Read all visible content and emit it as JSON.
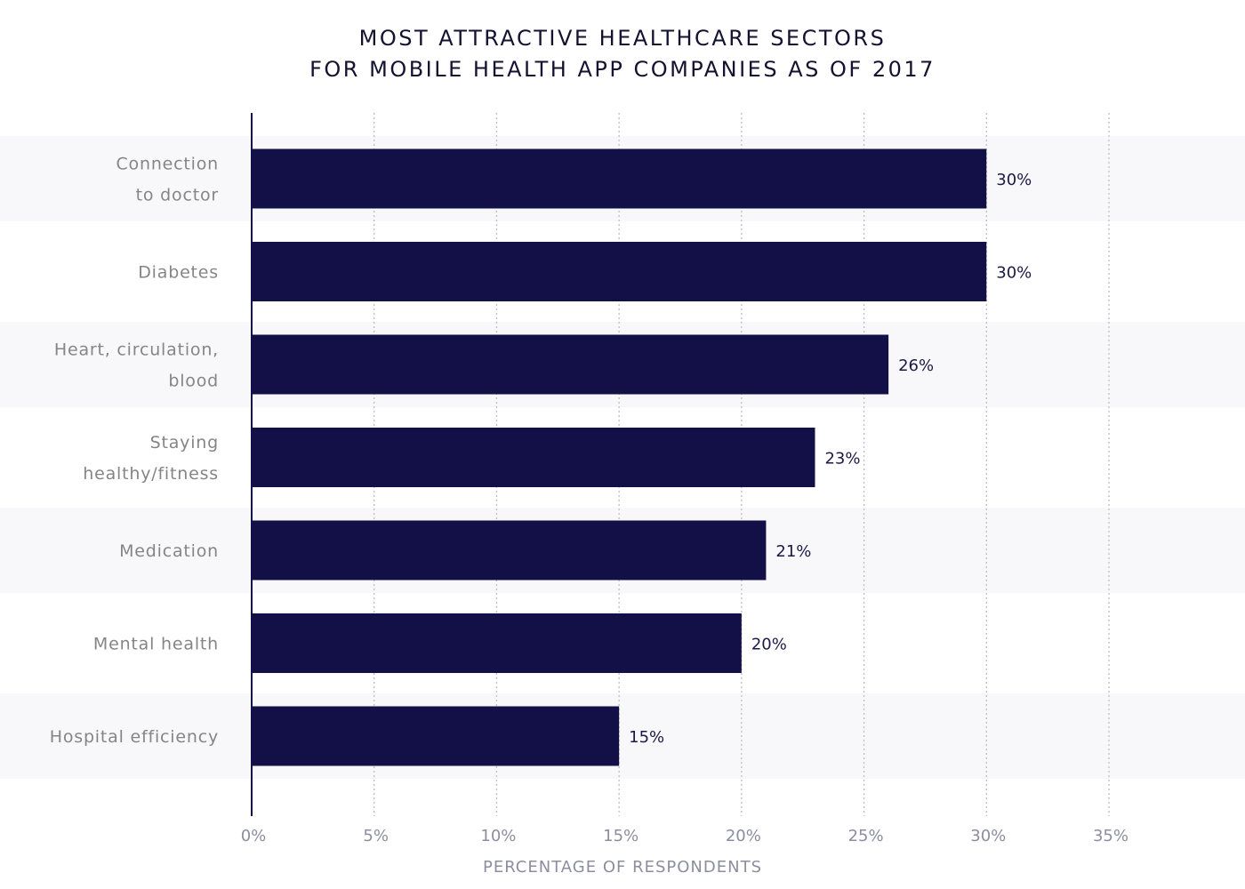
{
  "title_line1": "MOST ATTRACTIVE HEALTHCARE SECTORS",
  "title_line2": "FOR MOBILE HEALTH APP COMPANIES AS OF 2017",
  "colors": {
    "bar": "#121047",
    "band": "#f8f8fa",
    "label": "#858585",
    "value": "#1c1a45",
    "axis": "#121047",
    "grid": "#bdbdc5",
    "tick": "#8d8da0"
  },
  "chart_data": {
    "type": "bar",
    "orientation": "horizontal",
    "title": "MOST ATTRACTIVE HEALTHCARE SECTORS FOR MOBILE HEALTH APP COMPANIES AS OF 2017",
    "xlabel": "PERCENTAGE OF RESPONDENTS",
    "ylabel": "",
    "xlim": [
      0,
      35
    ],
    "xticks": [
      0,
      5,
      10,
      15,
      20,
      25,
      30,
      35
    ],
    "tick_labels": [
      "0%",
      "5%",
      "10%",
      "15%",
      "20%",
      "25%",
      "30%",
      "35%"
    ],
    "grid": "vertical dotted",
    "categories": [
      [
        "Connection",
        "to doctor"
      ],
      [
        "Diabetes"
      ],
      [
        "Heart, circulation,",
        "blood"
      ],
      [
        "Staying",
        "healthy/fitness"
      ],
      [
        "Medication"
      ],
      [
        "Mental health"
      ],
      [
        "Hospital efficiency"
      ]
    ],
    "values": [
      30,
      30,
      26,
      23,
      21,
      20,
      15
    ],
    "value_labels": [
      "30%",
      "30%",
      "26%",
      "23%",
      "21%",
      "20%",
      "15%"
    ]
  }
}
